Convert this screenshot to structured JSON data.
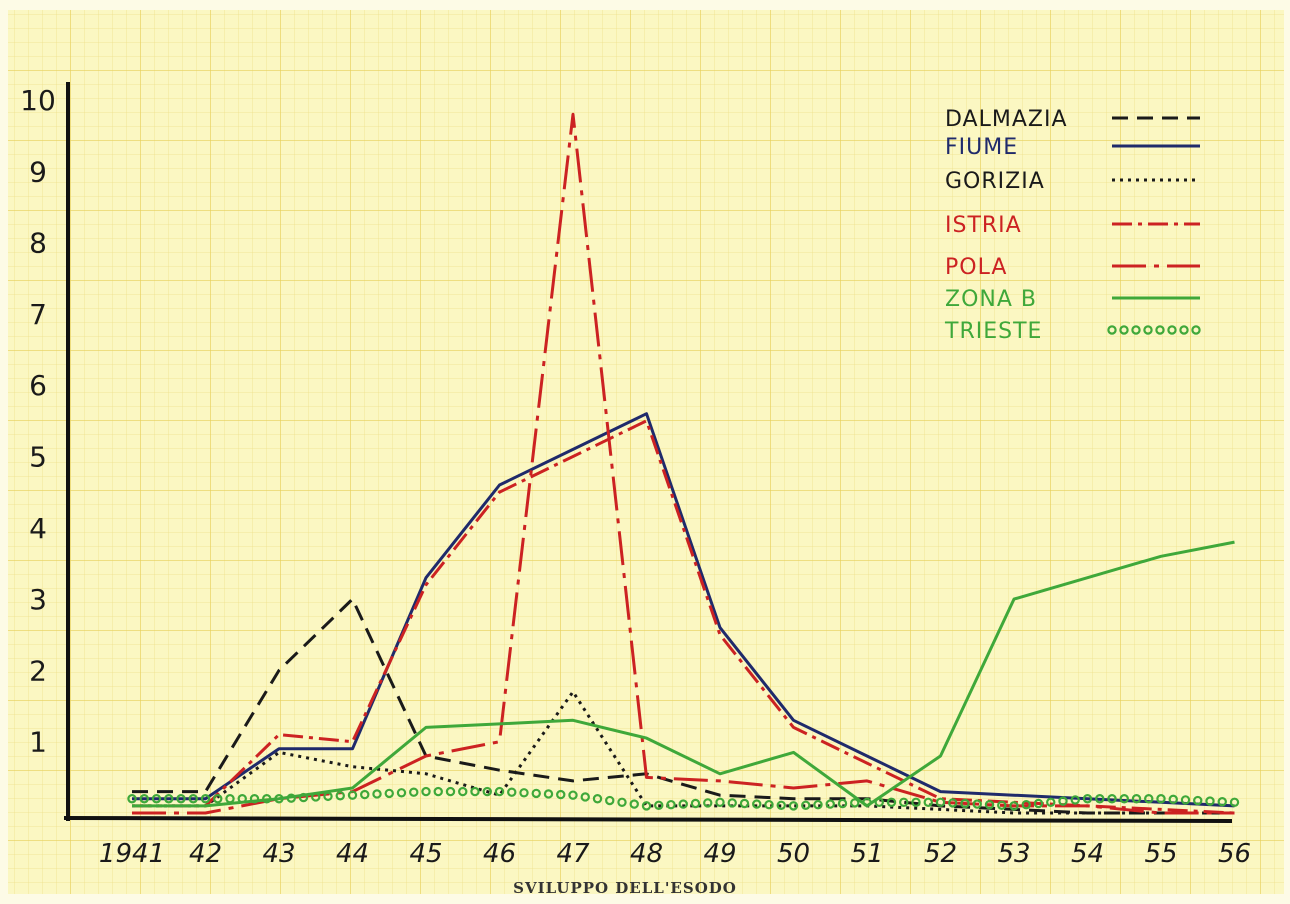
{
  "chart_data": {
    "type": "line",
    "caption": "SVILUPPO DELL'ESODO",
    "x_labels": [
      "1941",
      "42",
      "43",
      "44",
      "45",
      "46",
      "47",
      "48",
      "49",
      "50",
      "51",
      "52",
      "53",
      "54",
      "55",
      "56"
    ],
    "x": [
      1941,
      1942,
      1943,
      1944,
      1945,
      1946,
      1947,
      1948,
      1949,
      1950,
      1951,
      1952,
      1953,
      1954,
      1955,
      1956
    ],
    "y_ticks": [
      "1",
      "2",
      "3",
      "4",
      "5",
      "6",
      "7",
      "8",
      "9",
      "10"
    ],
    "ylim": [
      0,
      10
    ],
    "legend_position": "top-right",
    "series": [
      {
        "name": "DALMAZIA",
        "style": "dashed",
        "color": "#1a1a1a",
        "values": [
          0.3,
          0.3,
          2.0,
          3.0,
          0.8,
          0.6,
          0.45,
          0.55,
          0.25,
          0.2,
          0.2,
          0.1,
          0.05,
          0.0,
          0.0,
          0.0
        ]
      },
      {
        "name": "FIUME",
        "style": "solid",
        "color": "#1f2a6b",
        "values": [
          0.2,
          0.2,
          0.9,
          0.9,
          3.3,
          4.6,
          5.1,
          5.6,
          2.6,
          1.3,
          0.8,
          0.3,
          0.25,
          0.2,
          0.15,
          0.1
        ]
      },
      {
        "name": "GORIZIA",
        "style": "dotted",
        "color": "#1a1a1a",
        "values": [
          0.1,
          0.1,
          0.85,
          0.65,
          0.55,
          0.25,
          1.7,
          0.1,
          0.1,
          0.1,
          0.1,
          0.05,
          0.0,
          0.0,
          0.0,
          0.0
        ]
      },
      {
        "name": "ISTRIA",
        "style": "dashdot",
        "color": "#cc2222",
        "values": [
          0.1,
          0.1,
          1.1,
          1.0,
          3.2,
          4.5,
          5.0,
          5.5,
          2.5,
          1.2,
          0.7,
          0.2,
          0.15,
          0.1,
          0.05,
          0.0
        ]
      },
      {
        "name": "POLA",
        "style": "longdashdot",
        "color": "#cc2222",
        "values": [
          0.0,
          0.0,
          0.2,
          0.3,
          0.8,
          1.0,
          9.8,
          0.5,
          0.45,
          0.35,
          0.45,
          0.15,
          0.1,
          0.1,
          0.0,
          0.0
        ]
      },
      {
        "name": "ZONA B",
        "style": "solid",
        "color": "#3fa83a",
        "values": [
          0.1,
          0.1,
          0.2,
          0.35,
          1.2,
          1.25,
          1.3,
          1.05,
          0.55,
          0.85,
          0.1,
          0.8,
          3.0,
          3.3,
          3.6,
          3.8
        ]
      },
      {
        "name": "TRIESTE",
        "style": "circles",
        "color": "#3fa83a",
        "values": [
          0.2,
          0.2,
          0.2,
          0.25,
          0.3,
          0.3,
          0.25,
          0.1,
          0.15,
          0.1,
          0.15,
          0.15,
          0.1,
          0.2,
          0.2,
          0.15
        ]
      }
    ]
  }
}
